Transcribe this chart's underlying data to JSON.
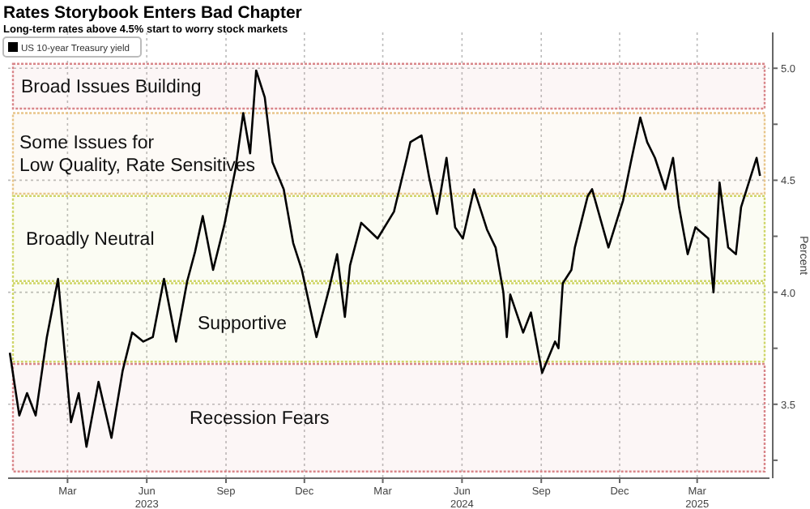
{
  "chart_data": {
    "type": "line",
    "title": "Rates Storybook Enters Bad Chapter",
    "subtitle": "Long-term rates above 4.5% start to worry stock markets",
    "ylabel": "Percent",
    "x": [
      "2023-01-07",
      "2023-01-18",
      "2023-01-27",
      "2023-02-06",
      "2023-02-19",
      "2023-03-04",
      "2023-03-19",
      "2023-03-28",
      "2023-04-06",
      "2023-04-20",
      "2023-05-05",
      "2023-05-18",
      "2023-05-29",
      "2023-06-11",
      "2023-06-22",
      "2023-07-05",
      "2023-07-19",
      "2023-08-01",
      "2023-08-10",
      "2023-08-19",
      "2023-08-31",
      "2023-09-13",
      "2023-09-26",
      "2023-10-05",
      "2023-10-13",
      "2023-10-20",
      "2023-10-30",
      "2023-11-08",
      "2023-11-21",
      "2023-12-02",
      "2023-12-12",
      "2023-12-29",
      "2024-01-13",
      "2024-01-22",
      "2024-01-31",
      "2024-02-06",
      "2024-02-19",
      "2024-03-09",
      "2024-03-28",
      "2024-04-12",
      "2024-04-16",
      "2024-04-29",
      "2024-05-08",
      "2024-05-17",
      "2024-05-28",
      "2024-06-07",
      "2024-06-16",
      "2024-06-29",
      "2024-07-14",
      "2024-07-24",
      "2024-08-02",
      "2024-08-06",
      "2024-08-10",
      "2024-08-25",
      "2024-09-03",
      "2024-09-16",
      "2024-10-01",
      "2024-10-05",
      "2024-10-10",
      "2024-10-20",
      "2024-10-24",
      "2024-11-08",
      "2024-11-13",
      "2024-12-02",
      "2024-12-19",
      "2024-12-28",
      "2025-01-08",
      "2025-01-16",
      "2025-01-25",
      "2025-02-06",
      "2025-02-15",
      "2025-02-22",
      "2025-03-04",
      "2025-03-13",
      "2025-03-28",
      "2025-04-03",
      "2025-04-10",
      "2025-04-20",
      "2025-04-29",
      "2025-05-05",
      "2025-05-14",
      "2025-05-23",
      "2025-05-27"
    ],
    "series": [
      {
        "name": "US 10-year Treasury yield",
        "color": "#000000",
        "values": [
          3.73,
          3.45,
          3.55,
          3.45,
          3.8,
          4.06,
          3.42,
          3.55,
          3.31,
          3.6,
          3.35,
          3.65,
          3.82,
          3.78,
          3.8,
          4.06,
          3.78,
          4.05,
          4.18,
          4.34,
          4.1,
          4.3,
          4.55,
          4.8,
          4.62,
          4.99,
          4.87,
          4.58,
          4.46,
          4.22,
          4.1,
          3.8,
          4.02,
          4.17,
          3.89,
          4.12,
          4.31,
          4.24,
          4.36,
          4.6,
          4.67,
          4.7,
          4.51,
          4.35,
          4.6,
          4.29,
          4.24,
          4.46,
          4.28,
          4.2,
          4.0,
          3.8,
          3.99,
          3.82,
          3.91,
          3.64,
          3.78,
          3.75,
          4.04,
          4.1,
          4.2,
          4.43,
          4.46,
          4.2,
          4.41,
          4.58,
          4.78,
          4.67,
          4.6,
          4.46,
          4.6,
          4.38,
          4.17,
          4.29,
          4.24,
          4.0,
          4.49,
          4.2,
          4.17,
          4.38,
          4.49,
          4.6,
          4.52
        ]
      }
    ],
    "xlim": [
      "2023-01-05",
      "2025-06-07"
    ],
    "xticks": [
      {
        "value": "2023-03-15",
        "label": "Mar"
      },
      {
        "value": "2023-06-15",
        "label": "Jun\n2023"
      },
      {
        "value": "2023-09-15",
        "label": "Sep"
      },
      {
        "value": "2023-12-15",
        "label": "Dec"
      },
      {
        "value": "2024-03-15",
        "label": "Mar"
      },
      {
        "value": "2024-06-15",
        "label": "Jun\n2024"
      },
      {
        "value": "2024-09-15",
        "label": "Sep"
      },
      {
        "value": "2024-12-15",
        "label": "Dec"
      },
      {
        "value": "2025-03-15",
        "label": "Mar\n2025"
      }
    ],
    "ylim": [
      3.17,
      5.16
    ],
    "yticks": [
      {
        "value": 3.25,
        "label": null
      },
      {
        "value": 3.5,
        "label": "3.5"
      },
      {
        "value": 3.75,
        "label": null
      },
      {
        "value": 4.0,
        "label": "4.0"
      },
      {
        "value": 4.25,
        "label": null
      },
      {
        "value": 4.5,
        "label": "4.5"
      },
      {
        "value": 4.75,
        "label": null
      },
      {
        "value": 5.0,
        "label": "5.0"
      }
    ],
    "bands": [
      {
        "axis": "y",
        "from": 4.82,
        "to": 5.02,
        "label": "Broad Issues Building",
        "color": "#d9868a"
      },
      {
        "axis": "y",
        "from": 4.44,
        "to": 4.8,
        "label": "Some Issues for\nLow Quality, Rate Sensitives",
        "color": "#e8c58a"
      },
      {
        "axis": "y",
        "from": 4.05,
        "to": 4.43,
        "label": "Broadly Neutral",
        "color": "#cfd66a"
      },
      {
        "axis": "y",
        "from": 3.69,
        "to": 4.04,
        "label": "Supportive",
        "color": "#cfd66a"
      },
      {
        "axis": "y",
        "from": 3.2,
        "to": 3.68,
        "label": "Recession Fears",
        "color": "#d9868a"
      }
    ],
    "grid": true,
    "legend": "top left",
    "line_style": "solid",
    "marker": "none"
  }
}
